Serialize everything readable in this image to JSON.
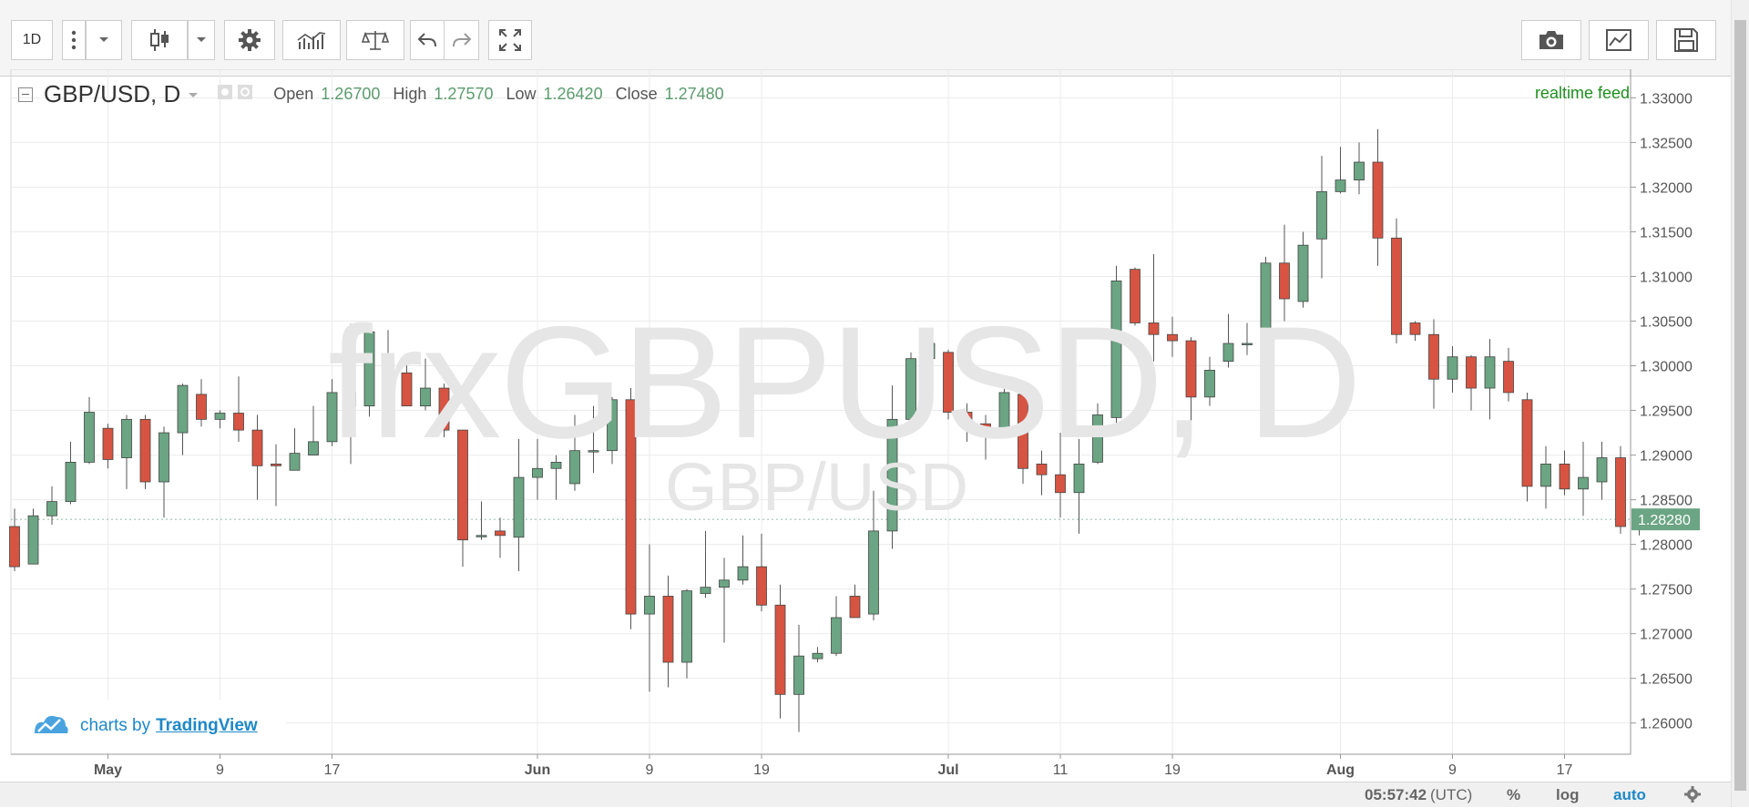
{
  "toolbar": {
    "interval": "1D",
    "icons": [
      "more-vertical-icon",
      "chevron-down-icon",
      "candlestick-icon",
      "chevron-down-icon",
      "gear-icon",
      "indicators-icon",
      "compare-icon",
      "undo-icon",
      "redo-icon",
      "fullscreen-icon",
      "camera-icon",
      "chart-window-icon",
      "save-icon"
    ]
  },
  "legend": {
    "symbol": "GBP/USD, D",
    "open_label": "Open",
    "open": "1.26700",
    "high_label": "High",
    "high": "1.27570",
    "low_label": "Low",
    "low": "1.26420",
    "close_label": "Close",
    "close": "1.27480"
  },
  "realtime": "realtime feed",
  "watermark": "frxGBPUSD, D",
  "watermark_sub": "GBP/USD",
  "branding": {
    "prefix": "charts by",
    "link": "TradingView"
  },
  "status": {
    "time": "05:57:42",
    "tz": "(UTC)",
    "percent": "%",
    "log": "log",
    "auto": "auto"
  },
  "colors": {
    "up": "#6ba583",
    "down": "#d75442",
    "last_price_bg": "#6ba583",
    "accent": "#1e88c8"
  },
  "chart_data": {
    "type": "candlestick",
    "ylim": [
      1.2565,
      1.333
    ],
    "y_ticks": [
      "1.26000",
      "1.26500",
      "1.27000",
      "1.27500",
      "1.28000",
      "1.28500",
      "1.29000",
      "1.29500",
      "1.30000",
      "1.30500",
      "1.31000",
      "1.31500",
      "1.32000",
      "1.32500",
      "1.33000"
    ],
    "x_ticks": [
      {
        "label": "May",
        "index": 5
      },
      {
        "label": "9",
        "index": 11
      },
      {
        "label": "17",
        "index": 17
      },
      {
        "label": "Jun",
        "index": 28
      },
      {
        "label": "9",
        "index": 34
      },
      {
        "label": "19",
        "index": 40
      },
      {
        "label": "Jul",
        "index": 50
      },
      {
        "label": "11",
        "index": 56
      },
      {
        "label": "19",
        "index": 62
      },
      {
        "label": "Aug",
        "index": 71
      },
      {
        "label": "9",
        "index": 77
      },
      {
        "label": "17",
        "index": 83
      }
    ],
    "last_price": "1.28280",
    "candles": [
      {
        "o": 1.282,
        "h": 1.284,
        "l": 1.277,
        "c": 1.2775
      },
      {
        "o": 1.2778,
        "h": 1.284,
        "l": 1.2778,
        "c": 1.2832
      },
      {
        "o": 1.2832,
        "h": 1.2865,
        "l": 1.2822,
        "c": 1.2848
      },
      {
        "o": 1.2848,
        "h": 1.2915,
        "l": 1.2845,
        "c": 1.2892
      },
      {
        "o": 1.2892,
        "h": 1.2965,
        "l": 1.289,
        "c": 1.2948
      },
      {
        "o": 1.293,
        "h": 1.2935,
        "l": 1.2885,
        "c": 1.2895
      },
      {
        "o": 1.2897,
        "h": 1.2945,
        "l": 1.2862,
        "c": 1.294
      },
      {
        "o": 1.294,
        "h": 1.2945,
        "l": 1.2862,
        "c": 1.287
      },
      {
        "o": 1.287,
        "h": 1.2932,
        "l": 1.283,
        "c": 1.2925
      },
      {
        "o": 1.2925,
        "h": 1.298,
        "l": 1.29,
        "c": 1.2978
      },
      {
        "o": 1.2968,
        "h": 1.2985,
        "l": 1.2932,
        "c": 1.294
      },
      {
        "o": 1.294,
        "h": 1.295,
        "l": 1.293,
        "c": 1.2947
      },
      {
        "o": 1.2947,
        "h": 1.2988,
        "l": 1.2915,
        "c": 1.2928
      },
      {
        "o": 1.2928,
        "h": 1.2945,
        "l": 1.285,
        "c": 1.2888
      },
      {
        "o": 1.289,
        "h": 1.2912,
        "l": 1.2843,
        "c": 1.2888
      },
      {
        "o": 1.2883,
        "h": 1.293,
        "l": 1.2883,
        "c": 1.2902
      },
      {
        "o": 1.29,
        "h": 1.2955,
        "l": 1.29,
        "c": 1.2915
      },
      {
        "o": 1.2915,
        "h": 1.2985,
        "l": 1.291,
        "c": 1.297
      },
      {
        "o": 1.297,
        "h": 1.3047,
        "l": 1.289,
        "c": 1.2955
      },
      {
        "o": 1.2955,
        "h": 1.3045,
        "l": 1.2943,
        "c": 1.3038
      },
      {
        "o": 1.301,
        "h": 1.304,
        "l": 1.299,
        "c": 1.2992
      },
      {
        "o": 1.2992,
        "h": 1.301,
        "l": 1.2955,
        "c": 1.2955
      },
      {
        "o": 1.2955,
        "h": 1.3008,
        "l": 1.295,
        "c": 1.2975
      },
      {
        "o": 1.2975,
        "h": 1.298,
        "l": 1.292,
        "c": 1.2928
      },
      {
        "o": 1.2928,
        "h": 1.2928,
        "l": 1.2775,
        "c": 1.2805
      },
      {
        "o": 1.281,
        "h": 1.2848,
        "l": 1.2805,
        "c": 1.281
      },
      {
        "o": 1.2815,
        "h": 1.283,
        "l": 1.2785,
        "c": 1.281
      },
      {
        "o": 1.2808,
        "h": 1.2918,
        "l": 1.277,
        "c": 1.2875
      },
      {
        "o": 1.2875,
        "h": 1.2918,
        "l": 1.285,
        "c": 1.2885
      },
      {
        "o": 1.2885,
        "h": 1.29,
        "l": 1.285,
        "c": 1.2892
      },
      {
        "o": 1.2868,
        "h": 1.2945,
        "l": 1.286,
        "c": 1.2905
      },
      {
        "o": 1.2905,
        "h": 1.2955,
        "l": 1.288,
        "c": 1.2905
      },
      {
        "o": 1.2905,
        "h": 1.2965,
        "l": 1.289,
        "c": 1.2962
      },
      {
        "o": 1.2962,
        "h": 1.2975,
        "l": 1.2705,
        "c": 1.2722
      },
      {
        "o": 1.2722,
        "h": 1.28,
        "l": 1.2635,
        "c": 1.2742
      },
      {
        "o": 1.2742,
        "h": 1.2765,
        "l": 1.264,
        "c": 1.2668
      },
      {
        "o": 1.2668,
        "h": 1.275,
        "l": 1.265,
        "c": 1.2748
      },
      {
        "o": 1.2745,
        "h": 1.2815,
        "l": 1.274,
        "c": 1.2752
      },
      {
        "o": 1.2752,
        "h": 1.2785,
        "l": 1.269,
        "c": 1.276
      },
      {
        "o": 1.276,
        "h": 1.281,
        "l": 1.2755,
        "c": 1.2775
      },
      {
        "o": 1.2775,
        "h": 1.2812,
        "l": 1.2725,
        "c": 1.2732
      },
      {
        "o": 1.2732,
        "h": 1.2755,
        "l": 1.2605,
        "c": 1.2632
      },
      {
        "o": 1.2632,
        "h": 1.271,
        "l": 1.259,
        "c": 1.2675
      },
      {
        "o": 1.2672,
        "h": 1.2685,
        "l": 1.2668,
        "c": 1.2678
      },
      {
        "o": 1.2678,
        "h": 1.2742,
        "l": 1.2675,
        "c": 1.2718
      },
      {
        "o": 1.2742,
        "h": 1.2755,
        "l": 1.2718,
        "c": 1.2718
      },
      {
        "o": 1.2722,
        "h": 1.286,
        "l": 1.2715,
        "c": 1.2815
      },
      {
        "o": 1.2815,
        "h": 1.2978,
        "l": 1.2795,
        "c": 1.294
      },
      {
        "o": 1.294,
        "h": 1.3015,
        "l": 1.294,
        "c": 1.3008
      },
      {
        "o": 1.3008,
        "h": 1.3028,
        "l": 1.299,
        "c": 1.3025
      },
      {
        "o": 1.3015,
        "h": 1.3018,
        "l": 1.294,
        "c": 1.2948
      },
      {
        "o": 1.2948,
        "h": 1.2958,
        "l": 1.2915,
        "c": 1.2935
      },
      {
        "o": 1.2935,
        "h": 1.2945,
        "l": 1.2895,
        "c": 1.2928
      },
      {
        "o": 1.293,
        "h": 1.2985,
        "l": 1.292,
        "c": 1.297
      },
      {
        "o": 1.2968,
        "h": 1.2972,
        "l": 1.2868,
        "c": 1.2885
      },
      {
        "o": 1.289,
        "h": 1.2905,
        "l": 1.2855,
        "c": 1.2878
      },
      {
        "o": 1.2878,
        "h": 1.2925,
        "l": 1.283,
        "c": 1.2858
      },
      {
        "o": 1.2858,
        "h": 1.2918,
        "l": 1.2812,
        "c": 1.289
      },
      {
        "o": 1.2892,
        "h": 1.2958,
        "l": 1.289,
        "c": 1.2945
      },
      {
        "o": 1.2942,
        "h": 1.3112,
        "l": 1.293,
        "c": 1.3095
      },
      {
        "o": 1.3108,
        "h": 1.311,
        "l": 1.3045,
        "c": 1.3048
      },
      {
        "o": 1.3048,
        "h": 1.3125,
        "l": 1.3005,
        "c": 1.3035
      },
      {
        "o": 1.3035,
        "h": 1.3055,
        "l": 1.301,
        "c": 1.3028
      },
      {
        "o": 1.3028,
        "h": 1.3032,
        "l": 1.2935,
        "c": 1.2965
      },
      {
        "o": 1.2965,
        "h": 1.301,
        "l": 1.2955,
        "c": 1.2995
      },
      {
        "o": 1.3005,
        "h": 1.3058,
        "l": 1.2998,
        "c": 1.3025
      },
      {
        "o": 1.3025,
        "h": 1.3048,
        "l": 1.3012,
        "c": 1.3025
      },
      {
        "o": 1.3025,
        "h": 1.3122,
        "l": 1.3,
        "c": 1.3115
      },
      {
        "o": 1.3115,
        "h": 1.3158,
        "l": 1.305,
        "c": 1.3075
      },
      {
        "o": 1.3072,
        "h": 1.315,
        "l": 1.3065,
        "c": 1.3135
      },
      {
        "o": 1.3142,
        "h": 1.3235,
        "l": 1.3098,
        "c": 1.3195
      },
      {
        "o": 1.3195,
        "h": 1.3245,
        "l": 1.3193,
        "c": 1.3208
      },
      {
        "o": 1.3208,
        "h": 1.325,
        "l": 1.3192,
        "c": 1.3228
      },
      {
        "o": 1.3228,
        "h": 1.3265,
        "l": 1.3112,
        "c": 1.3143
      },
      {
        "o": 1.3143,
        "h": 1.3165,
        "l": 1.3025,
        "c": 1.3035
      },
      {
        "o": 1.3048,
        "h": 1.305,
        "l": 1.3028,
        "c": 1.3035
      },
      {
        "o": 1.3035,
        "h": 1.3052,
        "l": 1.2952,
        "c": 1.2985
      },
      {
        "o": 1.2985,
        "h": 1.3022,
        "l": 1.297,
        "c": 1.301
      },
      {
        "o": 1.301,
        "h": 1.3012,
        "l": 1.295,
        "c": 1.2975
      },
      {
        "o": 1.2975,
        "h": 1.303,
        "l": 1.294,
        "c": 1.301
      },
      {
        "o": 1.3005,
        "h": 1.302,
        "l": 1.296,
        "c": 1.297
      },
      {
        "o": 1.2962,
        "h": 1.297,
        "l": 1.2848,
        "c": 1.2865
      },
      {
        "o": 1.2865,
        "h": 1.291,
        "l": 1.284,
        "c": 1.289
      },
      {
        "o": 1.289,
        "h": 1.2905,
        "l": 1.2855,
        "c": 1.2862
      },
      {
        "o": 1.2862,
        "h": 1.2915,
        "l": 1.2832,
        "c": 1.2875
      },
      {
        "o": 1.287,
        "h": 1.2915,
        "l": 1.285,
        "c": 1.2897
      },
      {
        "o": 1.2897,
        "h": 1.291,
        "l": 1.2812,
        "c": 1.282
      },
      {
        "o": 1.2822,
        "h": 1.2835,
        "l": 1.281,
        "c": 1.2828
      }
    ]
  }
}
